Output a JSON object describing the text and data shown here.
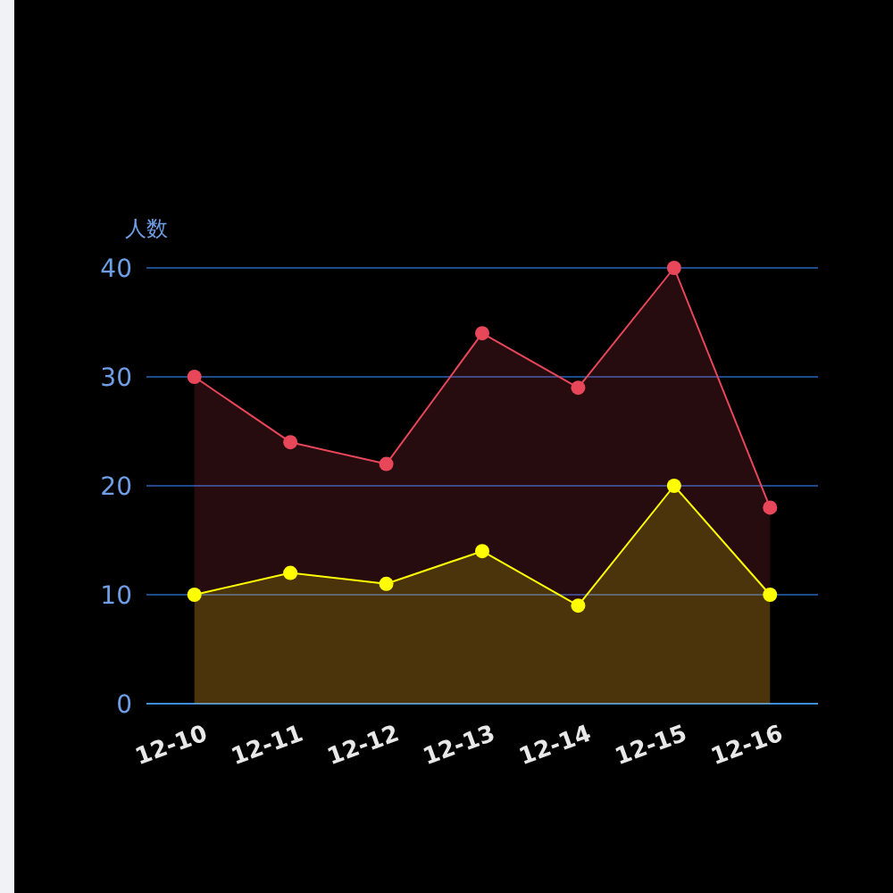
{
  "chart_data": {
    "type": "area",
    "ylabel": "人数",
    "categories": [
      "12-10",
      "12-11",
      "12-12",
      "12-13",
      "12-14",
      "12-15",
      "12-16"
    ],
    "series": [
      {
        "color": "#e8475a",
        "values": [
          30,
          24,
          22,
          34,
          29,
          40,
          18
        ]
      },
      {
        "color": "#ffff00",
        "values": [
          10,
          12,
          11,
          14,
          9,
          20,
          10
        ]
      }
    ],
    "ylim": [
      0,
      40
    ],
    "yticks": [
      0,
      10,
      20,
      30,
      40
    ],
    "grid": "y",
    "marker": "circle"
  }
}
